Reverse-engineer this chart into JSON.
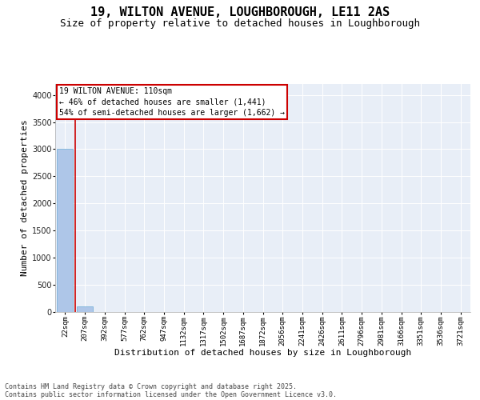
{
  "title_line1": "19, WILTON AVENUE, LOUGHBOROUGH, LE11 2AS",
  "title_line2": "Size of property relative to detached houses in Loughborough",
  "xlabel": "Distribution of detached houses by size in Loughborough",
  "ylabel": "Number of detached properties",
  "categories": [
    "22sqm",
    "207sqm",
    "392sqm",
    "577sqm",
    "762sqm",
    "947sqm",
    "1132sqm",
    "1317sqm",
    "1502sqm",
    "1687sqm",
    "1872sqm",
    "2056sqm",
    "2241sqm",
    "2426sqm",
    "2611sqm",
    "2796sqm",
    "2981sqm",
    "3166sqm",
    "3351sqm",
    "3536sqm",
    "3721sqm"
  ],
  "values": [
    3000,
    110,
    5,
    2,
    1,
    1,
    1,
    0,
    0,
    0,
    0,
    0,
    0,
    0,
    0,
    0,
    0,
    0,
    0,
    0,
    0
  ],
  "bar_color": "#aec6e8",
  "bar_edge_color": "#6aaad4",
  "vline_color": "#cc0000",
  "annotation_text": "19 WILTON AVENUE: 110sqm\n← 46% of detached houses are smaller (1,441)\n54% of semi-detached houses are larger (1,662) →",
  "annotation_box_edgecolor": "#cc0000",
  "ylim_max": 4200,
  "yticks": [
    0,
    500,
    1000,
    1500,
    2000,
    2500,
    3000,
    3500,
    4000
  ],
  "plot_bg_color": "#e8eef7",
  "grid_color": "#ffffff",
  "footer_line1": "Contains HM Land Registry data © Crown copyright and database right 2025.",
  "footer_line2": "Contains public sector information licensed under the Open Government Licence v3.0.",
  "title_fontsize": 11,
  "subtitle_fontsize": 9,
  "ylabel_fontsize": 8,
  "xlabel_fontsize": 8,
  "tick_fontsize": 6.5,
  "annot_fontsize": 7,
  "footer_fontsize": 6
}
